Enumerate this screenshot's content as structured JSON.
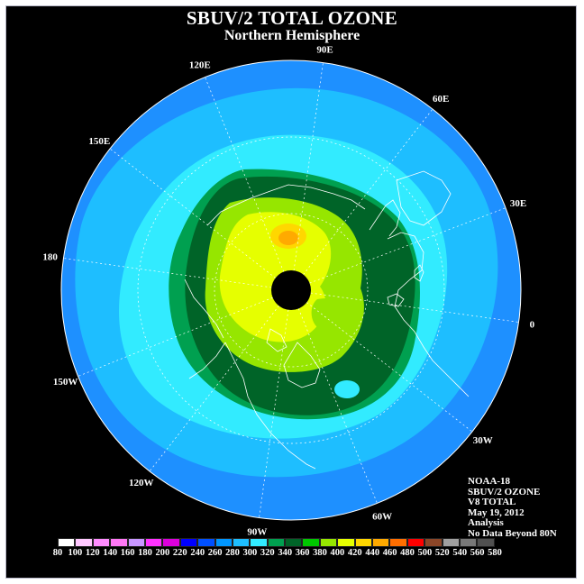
{
  "title": "SBUV/2 TOTAL OZONE",
  "subtitle": "Northern Hemisphere",
  "longitude_labels": [
    "90E",
    "60E",
    "30E",
    "0",
    "30W",
    "60W",
    "90W",
    "120W",
    "150W",
    "180",
    "150E",
    "120E"
  ],
  "info": {
    "satellite": "NOAA-18",
    "product": "SBUV/2 OZONE",
    "version": "V8 TOTAL",
    "date": "May 19, 2012",
    "type": "Analysis",
    "note": "No Data Beyond 80N"
  },
  "colorbar": {
    "levels": [
      80,
      100,
      120,
      140,
      160,
      180,
      200,
      220,
      240,
      260,
      280,
      300,
      320,
      340,
      360,
      380,
      400,
      420,
      440,
      460,
      480,
      500,
      520,
      540,
      560,
      580
    ],
    "colors": [
      "#ffffff",
      "#ffc8ff",
      "#ff8cff",
      "#ff78f5",
      "#c896ff",
      "#ff32ff",
      "#dc00dc",
      "#0000ff",
      "#0050ff",
      "#0096ff",
      "#1ebeff",
      "#32ebff",
      "#00a050",
      "#006428",
      "#00c800",
      "#96e600",
      "#e6ff00",
      "#ffd700",
      "#ffaa00",
      "#ff6e00",
      "#ff0000",
      "#8c4628",
      "#a0a0a0",
      "#787878",
      "#505050"
    ]
  },
  "map_colors": {
    "background": "#000000",
    "outer_blue": "#1e90ff",
    "mid_blue": "#1ebeff",
    "cyan": "#32ebff",
    "dark_green": "#006428",
    "green": "#00a050",
    "yellow_green": "#96e600",
    "yellow": "#e6ff00",
    "gold": "#ffd700",
    "orange": "#ffaa00",
    "pole": "#000000",
    "coast": "#ffffff"
  }
}
